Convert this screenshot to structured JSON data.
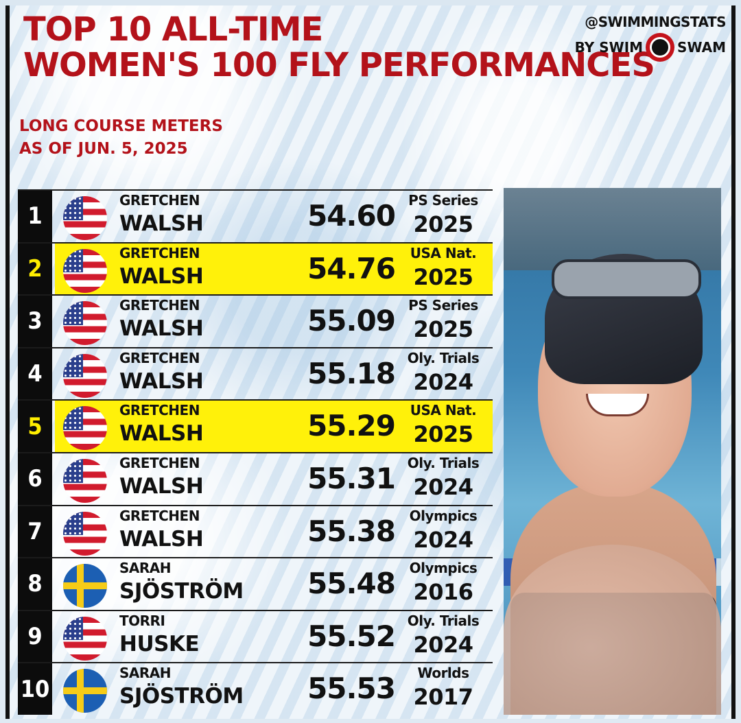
{
  "header": {
    "title_line1": "TOP 10 ALL-TIME",
    "title_line2": "WOMEN'S 100 FLY PERFORMANCES",
    "subtitle_line1": "LONG COURSE METERS",
    "subtitle_line2": "AS OF JUN. 5, 2025"
  },
  "brand": {
    "handle": "@SWIMMINGSTATS",
    "by": "BY SWIM",
    "swam": "SWAM"
  },
  "colors": {
    "title_red": "#b3121a",
    "highlight_yellow": "#fff10a",
    "rank_box": "#0c0c0c"
  },
  "rows": [
    {
      "rank": "1",
      "flag": "usa-flag",
      "first": "GRETCHEN",
      "last": "WALSH",
      "time": "54.60",
      "meet": "PS Series",
      "year": "2025",
      "highlight": false
    },
    {
      "rank": "2",
      "flag": "usa-flag",
      "first": "GRETCHEN",
      "last": "WALSH",
      "time": "54.76",
      "meet": "USA Nat.",
      "year": "2025",
      "highlight": true
    },
    {
      "rank": "3",
      "flag": "usa-flag",
      "first": "GRETCHEN",
      "last": "WALSH",
      "time": "55.09",
      "meet": "PS Series",
      "year": "2025",
      "highlight": false
    },
    {
      "rank": "4",
      "flag": "usa-flag",
      "first": "GRETCHEN",
      "last": "WALSH",
      "time": "55.18",
      "meet": "Oly. Trials",
      "year": "2024",
      "highlight": false
    },
    {
      "rank": "5",
      "flag": "usa-flag",
      "first": "GRETCHEN",
      "last": "WALSH",
      "time": "55.29",
      "meet": "USA Nat.",
      "year": "2025",
      "highlight": true
    },
    {
      "rank": "6",
      "flag": "usa-flag",
      "first": "GRETCHEN",
      "last": "WALSH",
      "time": "55.31",
      "meet": "Oly. Trials",
      "year": "2024",
      "highlight": false
    },
    {
      "rank": "7",
      "flag": "usa-flag",
      "first": "GRETCHEN",
      "last": "WALSH",
      "time": "55.38",
      "meet": "Olympics",
      "year": "2024",
      "highlight": false
    },
    {
      "rank": "8",
      "flag": "sweden-flag",
      "first": "SARAH",
      "last": "SJÖSTRÖM",
      "time": "55.48",
      "meet": "Olympics",
      "year": "2016",
      "highlight": false
    },
    {
      "rank": "9",
      "flag": "usa-flag",
      "first": "TORRI",
      "last": "HUSKE",
      "time": "55.52",
      "meet": "Oly. Trials",
      "year": "2024",
      "highlight": false
    },
    {
      "rank": "10",
      "flag": "sweden-flag",
      "first": "SARAH",
      "last": "SJÖSTRÖM",
      "time": "55.53",
      "meet": "Worlds",
      "year": "2017",
      "highlight": false
    }
  ]
}
